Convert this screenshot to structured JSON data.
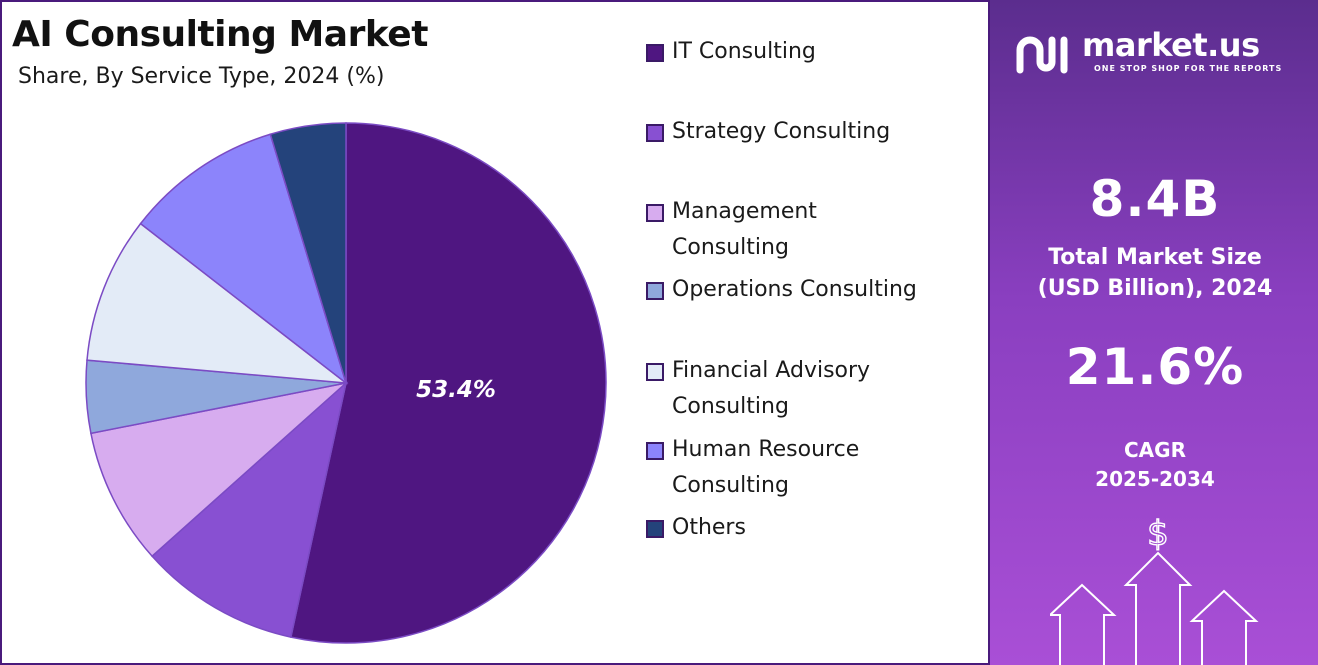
{
  "header": {
    "title": "AI Consulting Market",
    "subtitle": "Share, By Service Type, 2024 (%)"
  },
  "chart_data": {
    "type": "pie",
    "title": "AI Consulting Market",
    "subtitle": "Share, By Service Type, 2024 (%)",
    "categories": [
      "IT Consulting",
      "Strategy Consulting",
      "Management Consulting",
      "Operations Consulting",
      "Financial Advisory Consulting",
      "Human Resource Consulting",
      "Others"
    ],
    "values": [
      53.4,
      10.0,
      8.5,
      4.5,
      9.1,
      9.8,
      4.7
    ],
    "colors": [
      "#4f1681",
      "#8850d2",
      "#d7acef",
      "#8fa8dc",
      "#e3ebf7",
      "#8c84fb",
      "#24437b"
    ],
    "data_labels": [
      "53.4%",
      "",
      "",
      "",
      "",
      "",
      ""
    ],
    "legend_position": "right"
  },
  "legend": {
    "items": [
      {
        "line1": "IT Consulting",
        "line2": ""
      },
      {
        "line1": "Strategy Consulting",
        "line2": ""
      },
      {
        "line1": "Management",
        "line2": "Consulting"
      },
      {
        "line1": "Operations Consulting",
        "line2": ""
      },
      {
        "line1": "Financial Advisory",
        "line2": "Consulting"
      },
      {
        "line1": "Human Resource",
        "line2": "Consulting"
      },
      {
        "line1": "Others",
        "line2": ""
      }
    ]
  },
  "sidebar": {
    "brand": "market.us",
    "tagline": "ONE STOP SHOP FOR THE REPORTS",
    "market_size_value": "8.4B",
    "market_size_label_1": "Total Market Size",
    "market_size_label_2": "(USD Billion), 2024",
    "cagr_value": "21.6%",
    "cagr_label_1": "CAGR",
    "cagr_label_2": "2025-2034",
    "currency_symbol": "$"
  }
}
